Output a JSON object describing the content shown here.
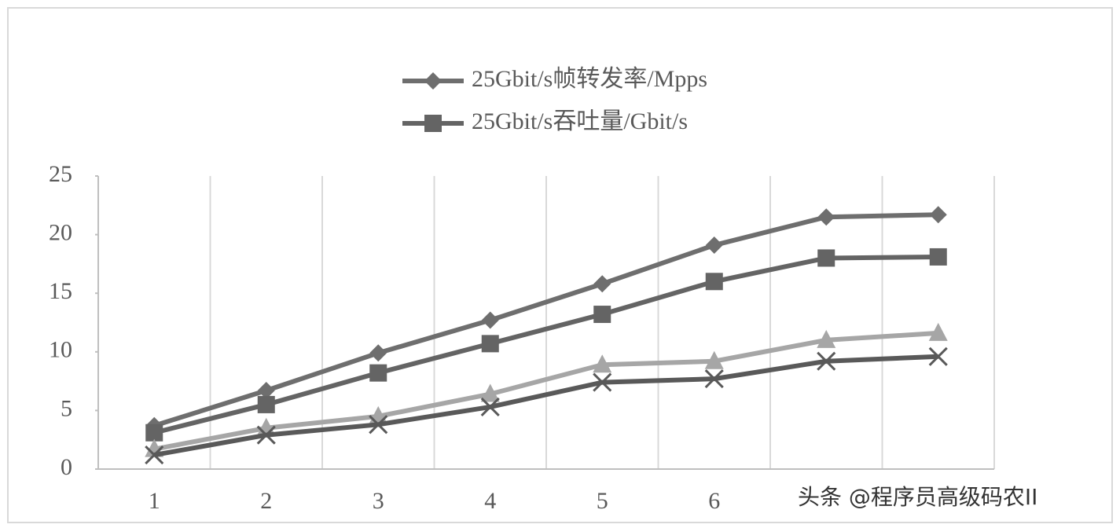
{
  "chart_data": {
    "type": "line",
    "categories": [
      "1",
      "2",
      "3",
      "4",
      "5",
      "6",
      null,
      null
    ],
    "series": [
      {
        "name": "25Gbit/s帧转发率/Mpps",
        "color": "#6e6e6e",
        "marker": "diamond",
        "values": [
          3.7,
          6.7,
          9.9,
          12.7,
          15.8,
          19.1,
          21.5,
          21.7
        ]
      },
      {
        "name": "25Gbit/s吞吐量/Gbit/s",
        "color": "#646464",
        "marker": "square",
        "values": [
          3.1,
          5.5,
          8.2,
          10.7,
          13.2,
          16.0,
          18.0,
          18.1
        ]
      },
      {
        "color": "#a6a6a6",
        "marker": "triangle",
        "values": [
          1.7,
          3.5,
          4.5,
          6.4,
          8.9,
          9.2,
          11.0,
          11.6
        ]
      },
      {
        "color": "#595959",
        "marker": "x",
        "values": [
          1.2,
          2.9,
          3.8,
          5.3,
          7.4,
          7.7,
          9.2,
          9.6
        ]
      }
    ],
    "ylim": [
      0,
      25
    ],
    "yticks": [
      0,
      5,
      10,
      15,
      20,
      25
    ],
    "grid": true,
    "legend": "top",
    "watermark": "头条 @程序员高级码农II"
  }
}
